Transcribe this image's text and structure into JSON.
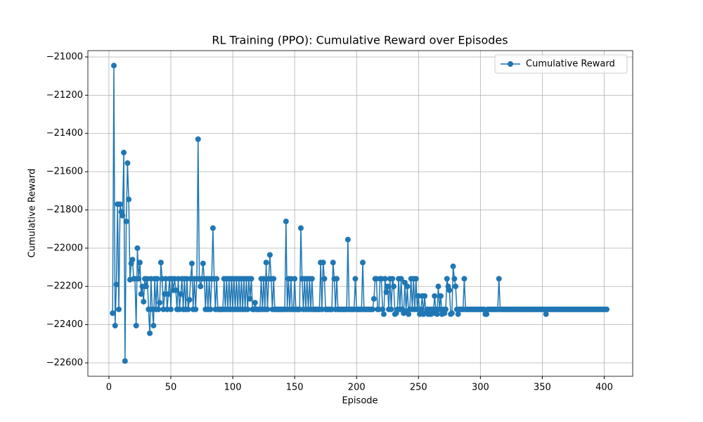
{
  "chart_data": {
    "type": "line",
    "title": "RL Training (PPO): Cumulative Reward over Episodes",
    "x_label": "Episode",
    "y_label": "Cumulative Reward",
    "xlim": [
      -17,
      423
    ],
    "ylim": [
      -22670,
      -20967
    ],
    "xticks": [
      0,
      50,
      100,
      150,
      200,
      250,
      300,
      350,
      400
    ],
    "yticks": [
      {
        "value": -22600,
        "label": "−22600"
      },
      {
        "value": -22400,
        "label": "−22400"
      },
      {
        "value": -22200,
        "label": "−22200"
      },
      {
        "value": -22000,
        "label": "−22000"
      },
      {
        "value": -21800,
        "label": "−21800"
      },
      {
        "value": -21600,
        "label": "−21600"
      },
      {
        "value": -21400,
        "label": "−21400"
      },
      {
        "value": -21200,
        "label": "−21200"
      },
      {
        "value": -21000,
        "label": "−21000"
      }
    ],
    "grid": true,
    "legend": "upper right",
    "x": [
      3,
      4,
      5,
      6,
      7,
      8,
      9,
      10,
      11,
      12,
      13,
      14,
      15,
      16,
      17,
      18,
      19,
      20,
      21,
      22,
      23,
      24,
      25,
      26,
      27,
      28,
      29,
      30,
      31,
      32,
      33,
      34,
      35,
      36,
      37,
      38,
      39,
      40,
      41,
      42,
      43,
      44,
      45,
      46,
      47,
      48,
      49,
      50,
      51,
      52,
      53,
      54,
      55,
      56,
      57,
      58,
      59,
      60,
      61,
      62,
      63,
      64,
      65,
      66,
      67,
      68,
      69,
      70,
      71,
      72,
      73,
      74,
      75,
      76,
      77,
      78,
      79,
      80,
      81,
      82,
      83,
      84,
      85,
      86,
      87,
      88,
      89,
      90,
      91,
      92,
      93,
      94,
      95,
      96,
      97,
      98,
      99,
      100,
      101,
      102,
      103,
      104,
      105,
      106,
      107,
      108,
      109,
      110,
      111,
      112,
      113,
      114,
      115,
      116,
      117,
      118,
      119,
      120,
      121,
      122,
      123,
      124,
      125,
      126,
      127,
      128,
      129,
      130,
      131,
      132,
      133,
      134,
      135,
      136,
      137,
      138,
      139,
      140,
      141,
      142,
      143,
      144,
      145,
      146,
      147,
      148,
      149,
      150,
      151,
      152,
      153,
      154,
      155,
      156,
      157,
      158,
      159,
      160,
      161,
      162,
      163,
      164,
      165,
      166,
      167,
      168,
      169,
      170,
      171,
      172,
      173,
      174,
      175,
      176,
      177,
      178,
      179,
      180,
      181,
      182,
      183,
      184,
      185,
      186,
      187,
      188,
      189,
      190,
      191,
      192,
      193,
      194,
      195,
      196,
      197,
      198,
      199,
      200,
      201,
      202,
      203,
      204,
      205,
      206,
      207,
      208,
      209,
      210,
      211,
      212,
      213,
      214,
      215,
      216,
      217,
      218,
      219,
      220,
      221,
      222,
      223,
      224,
      225,
      226,
      227,
      228,
      229,
      230,
      231,
      232,
      233,
      234,
      235,
      236,
      237,
      238,
      239,
      240,
      241,
      242,
      243,
      244,
      245,
      246,
      247,
      248,
      249,
      250,
      251,
      252,
      253,
      254,
      255,
      256,
      257,
      258,
      259,
      260,
      261,
      262,
      263,
      264,
      265,
      266,
      267,
      268,
      269,
      270,
      271,
      272,
      273,
      274,
      275,
      276,
      277,
      278,
      279,
      280,
      281,
      282,
      283,
      284,
      285,
      286,
      287,
      288,
      289,
      290,
      291,
      292,
      293,
      294,
      295,
      296,
      297,
      298,
      299,
      300,
      301,
      302,
      303,
      304,
      305,
      306,
      307,
      308,
      309,
      310,
      311,
      312,
      313,
      314,
      315,
      316,
      317,
      318,
      319,
      320,
      321,
      322,
      323,
      324,
      325,
      326,
      327,
      328,
      329,
      330,
      331,
      332,
      333,
      334,
      335,
      336,
      337,
      338,
      339,
      340,
      341,
      342,
      343,
      344,
      345,
      346,
      347,
      348,
      349,
      350,
      351,
      352,
      353,
      354,
      355,
      356,
      357,
      358,
      359,
      360,
      361,
      362,
      363,
      364,
      365,
      366,
      367,
      368,
      369,
      370,
      371,
      372,
      373,
      374,
      375,
      376,
      377,
      378,
      379,
      380,
      381,
      382,
      383,
      384,
      385,
      386,
      387,
      388,
      389,
      390,
      391,
      392,
      393,
      394,
      395,
      396,
      397,
      398,
      399,
      400,
      401,
      402
    ],
    "series": [
      {
        "name": "Cumulative Reward",
        "color": "#1f77b4",
        "values": [
          -22340,
          -21045,
          -22405,
          -22190,
          -21770,
          -22320,
          -21770,
          -21810,
          -21830,
          -21500,
          -22590,
          -21860,
          -21555,
          -21745,
          -22165,
          -22080,
          -22060,
          -22160,
          -22160,
          -22405,
          -22000,
          -22160,
          -22075,
          -22240,
          -22200,
          -22280,
          -22160,
          -22200,
          -22160,
          -22320,
          -22445,
          -22160,
          -22320,
          -22405,
          -22160,
          -22320,
          -22160,
          -22320,
          -22285,
          -22075,
          -22160,
          -22320,
          -22240,
          -22160,
          -22320,
          -22240,
          -22160,
          -22320,
          -22160,
          -22220,
          -22160,
          -22220,
          -22320,
          -22160,
          -22320,
          -22240,
          -22160,
          -22320,
          -22160,
          -22320,
          -22160,
          -22320,
          -22270,
          -22160,
          -22080,
          -22320,
          -22160,
          -22320,
          -22160,
          -21430,
          -22160,
          -22200,
          -22160,
          -22080,
          -22160,
          -22320,
          -22160,
          -22320,
          -22160,
          -22320,
          -22160,
          -21895,
          -22160,
          -22320,
          -22160,
          -22320,
          -22320,
          -22320,
          -22320,
          -22320,
          -22160,
          -22320,
          -22160,
          -22320,
          -22160,
          -22320,
          -22160,
          -22320,
          -22160,
          -22320,
          -22160,
          -22320,
          -22160,
          -22320,
          -22160,
          -22320,
          -22160,
          -22320,
          -22160,
          -22320,
          -22160,
          -22265,
          -22160,
          -22320,
          -22320,
          -22285,
          -22320,
          -22320,
          -22320,
          -22320,
          -22160,
          -22320,
          -22160,
          -22320,
          -22075,
          -22320,
          -22160,
          -22035,
          -22160,
          -22320,
          -22160,
          -22320,
          -22320,
          -22320,
          -22320,
          -22320,
          -22320,
          -22320,
          -22320,
          -22320,
          -21860,
          -22320,
          -22160,
          -22320,
          -22160,
          -22320,
          -22320,
          -22160,
          -22320,
          -22320,
          -22320,
          -22320,
          -21895,
          -22160,
          -22320,
          -22160,
          -22320,
          -22160,
          -22320,
          -22160,
          -22320,
          -22160,
          -22320,
          -22320,
          -22320,
          -22320,
          -22320,
          -22320,
          -22075,
          -22320,
          -22075,
          -22160,
          -22320,
          -22320,
          -22320,
          -22320,
          -22320,
          -22320,
          -22075,
          -22160,
          -22320,
          -22160,
          -22320,
          -22320,
          -22320,
          -22320,
          -22320,
          -22320,
          -22320,
          -22320,
          -21955,
          -22320,
          -22320,
          -22320,
          -22320,
          -22320,
          -22160,
          -22320,
          -22320,
          -22320,
          -22320,
          -22320,
          -22075,
          -22320,
          -22320,
          -22320,
          -22320,
          -22320,
          -22320,
          -22320,
          -22320,
          -22265,
          -22160,
          -22160,
          -22320,
          -22320,
          -22160,
          -22160,
          -22320,
          -22345,
          -22160,
          -22230,
          -22200,
          -22320,
          -22160,
          -22320,
          -22160,
          -22200,
          -22345,
          -22340,
          -22320,
          -22160,
          -22320,
          -22160,
          -22320,
          -22340,
          -22180,
          -22330,
          -22200,
          -22345,
          -22320,
          -22160,
          -22320,
          -22160,
          -22320,
          -22160,
          -22320,
          -22250,
          -22345,
          -22320,
          -22250,
          -22345,
          -22250,
          -22340,
          -22320,
          -22345,
          -22320,
          -22345,
          -22320,
          -22340,
          -22250,
          -22320,
          -22345,
          -22200,
          -22320,
          -22250,
          -22345,
          -22320,
          -22340,
          -22320,
          -22160,
          -22200,
          -22220,
          -22345,
          -22340,
          -22095,
          -22160,
          -22200,
          -22320,
          -22345,
          -22320,
          -22320,
          -22320,
          -22320,
          -22160,
          -22320,
          -22320,
          -22320,
          -22320,
          -22320,
          -22320,
          -22320,
          -22320,
          -22320,
          -22320,
          -22320,
          -22320,
          -22320,
          -22320,
          -22320,
          -22320,
          -22345,
          -22345,
          -22320,
          -22320,
          -22320,
          -22320,
          -22320,
          -22320,
          -22320,
          -22320,
          -22320,
          -22160,
          -22320,
          -22320,
          -22320,
          -22320,
          -22320,
          -22320,
          -22320,
          -22320,
          -22320,
          -22320,
          -22320,
          -22320,
          -22320,
          -22320,
          -22320,
          -22320,
          -22320,
          -22320,
          -22320,
          -22320,
          -22320,
          -22320,
          -22320,
          -22320,
          -22320,
          -22320,
          -22320,
          -22320,
          -22320,
          -22320,
          -22320,
          -22320,
          -22320,
          -22320,
          -22320,
          -22320,
          -22320,
          -22345,
          -22320,
          -22320,
          -22320,
          -22320,
          -22320,
          -22320,
          -22320,
          -22320,
          -22320,
          -22320,
          -22320,
          -22320,
          -22320,
          -22320,
          -22320,
          -22320,
          -22320,
          -22320,
          -22320,
          -22320,
          -22320,
          -22320,
          -22320,
          -22320,
          -22320,
          -22320,
          -22320,
          -22320,
          -22320,
          -22320,
          -22320,
          -22320,
          -22320,
          -22320,
          -22320,
          -22320,
          -22320,
          -22320,
          -22320,
          -22320,
          -22320,
          -22320,
          -22320,
          -22320,
          -22320,
          -22320,
          -22320,
          -22320,
          -22320
        ]
      }
    ]
  }
}
